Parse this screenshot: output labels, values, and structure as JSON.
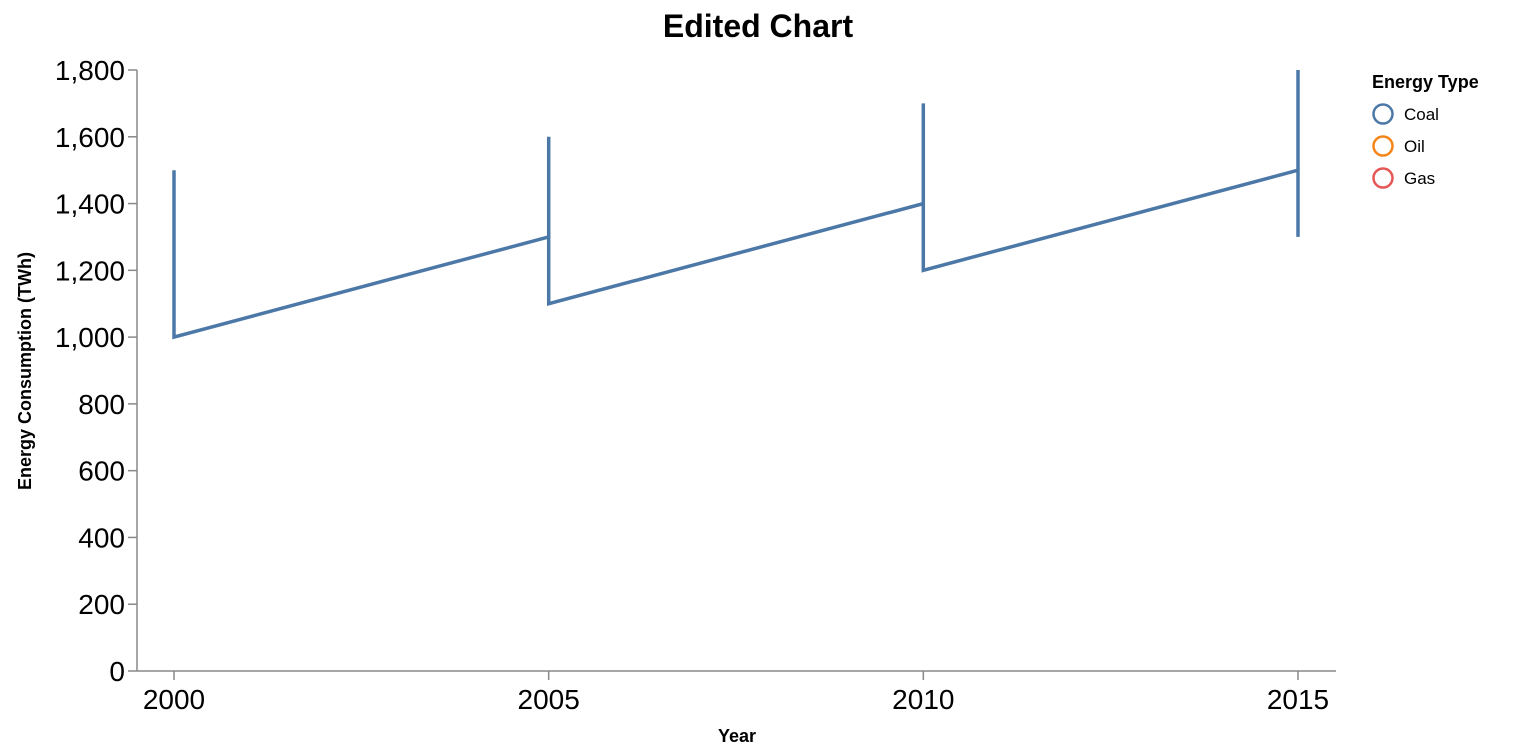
{
  "chart_data": {
    "type": "line",
    "title": "Edited Chart",
    "xlabel": "Year",
    "ylabel": "Energy Consumption (TWh)",
    "x_ticks": [
      "2000",
      "2005",
      "2010",
      "2015"
    ],
    "y_ticks": [
      "0",
      "200",
      "400",
      "600",
      "800",
      "1,000",
      "1,200",
      "1,400",
      "1,600",
      "1,800"
    ],
    "xlim": [
      2000,
      2015
    ],
    "ylim": [
      0,
      1800
    ],
    "grid": false,
    "legend": {
      "title": "Energy Type",
      "position": "right",
      "items": [
        {
          "name": "Coal",
          "color": "#4c78a8"
        },
        {
          "name": "Oil",
          "color": "#f58518"
        },
        {
          "name": "Gas",
          "color": "#e45756"
        }
      ]
    },
    "series": [
      {
        "name": "Coal",
        "color": "#4c78a8",
        "points": [
          {
            "x": 2000,
            "y": 1500
          },
          {
            "x": 2000,
            "y": 1000
          },
          {
            "x": 2005,
            "y": 1300
          },
          {
            "x": 2005,
            "y": 1600
          },
          {
            "x": 2005,
            "y": 1100
          },
          {
            "x": 2010,
            "y": 1400
          },
          {
            "x": 2010,
            "y": 1700
          },
          {
            "x": 2010,
            "y": 1200
          },
          {
            "x": 2015,
            "y": 1500
          },
          {
            "x": 2015,
            "y": 1800
          },
          {
            "x": 2015,
            "y": 1300
          }
        ]
      }
    ]
  }
}
